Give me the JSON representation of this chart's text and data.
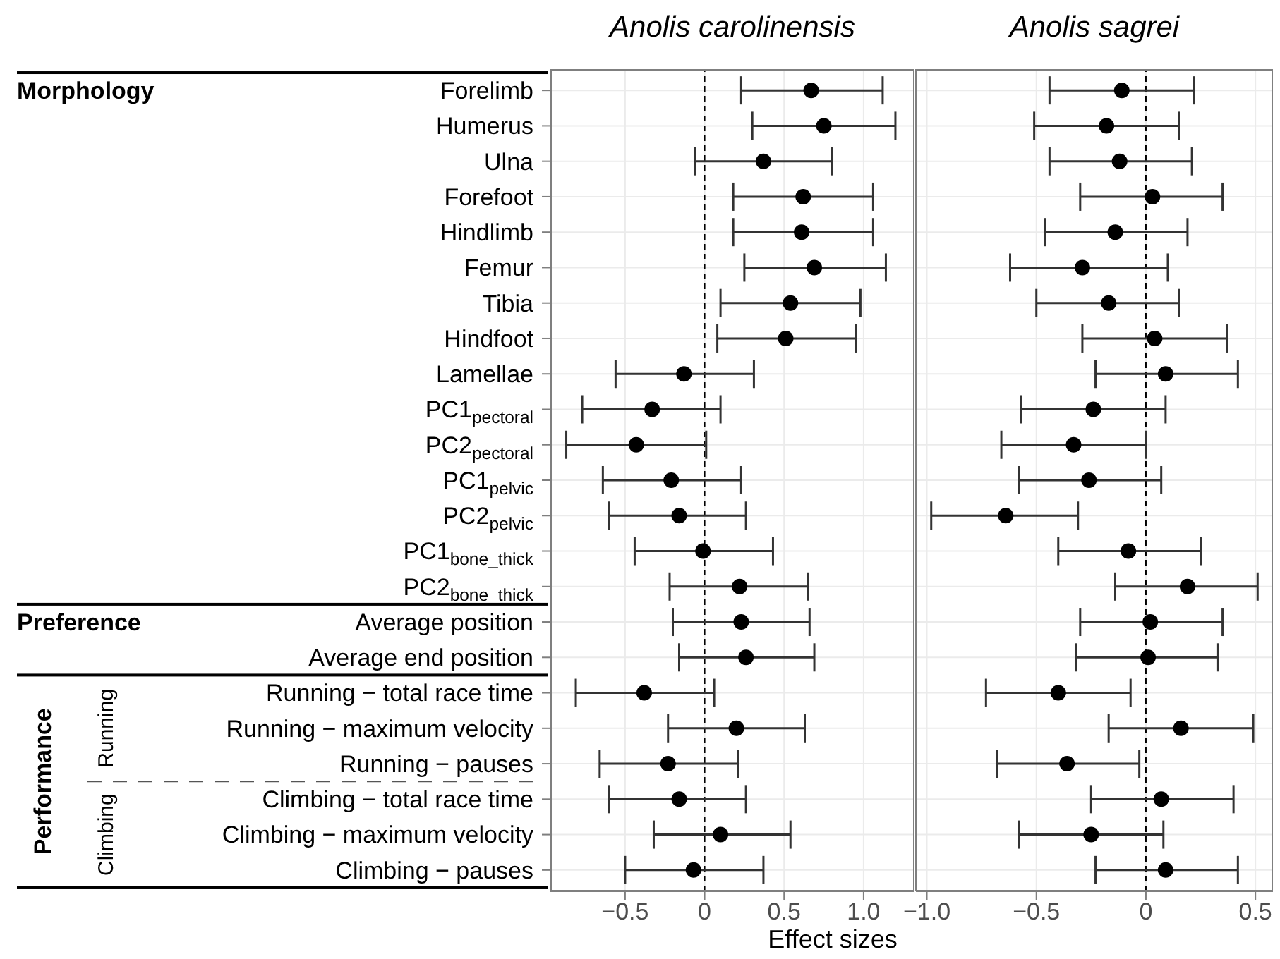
{
  "chart_data": [
    {
      "type": "scatter",
      "orientation": "horizontal",
      "title": "Anolis carolinensis",
      "xlabel": "Effect sizes",
      "categories": [
        "Forelimb",
        "Humerus",
        "Ulna",
        "Forefoot",
        "Hindlimb",
        "Femur",
        "Tibia",
        "Hindfoot",
        "Lamellae",
        "PC1$_{pectoral}$",
        "PC2$_{pectoral}$",
        "PC1$_{pelvic}$",
        "PC2$_{pelvic}$",
        "PC1$_{bone_thick}$",
        "PC2$_{bone_thick}$",
        "Average position",
        "Average end position",
        "Running − total race time",
        "Running − maximum velocity",
        "Running − pauses",
        "Climbing − total race time",
        "Climbing − maximum velocity",
        "Climbing − pauses"
      ],
      "values": [
        0.67,
        0.75,
        0.37,
        0.62,
        0.61,
        0.69,
        0.54,
        0.51,
        -0.13,
        -0.33,
        -0.43,
        -0.21,
        -0.16,
        -0.01,
        0.22,
        0.23,
        0.26,
        -0.38,
        0.2,
        -0.23,
        -0.16,
        0.1,
        -0.07
      ],
      "errors": [
        [
          0.23,
          1.12
        ],
        [
          0.3,
          1.2
        ],
        [
          -0.06,
          0.8
        ],
        [
          0.18,
          1.06
        ],
        [
          0.18,
          1.06
        ],
        [
          0.25,
          1.14
        ],
        [
          0.1,
          0.98
        ],
        [
          0.08,
          0.95
        ],
        [
          -0.56,
          0.31
        ],
        [
          -0.77,
          0.1
        ],
        [
          -0.87,
          0.01
        ],
        [
          -0.64,
          0.23
        ],
        [
          -0.6,
          0.26
        ],
        [
          -0.44,
          0.43
        ],
        [
          -0.22,
          0.65
        ],
        [
          -0.2,
          0.66
        ],
        [
          -0.16,
          0.69
        ],
        [
          -0.81,
          0.06
        ],
        [
          -0.23,
          0.63
        ],
        [
          -0.66,
          0.21
        ],
        [
          -0.6,
          0.26
        ],
        [
          -0.32,
          0.54
        ],
        [
          -0.5,
          0.37
        ]
      ],
      "color": "#000000",
      "marker": "circle",
      "grid": true,
      "xlim": [
        -0.97,
        1.32
      ],
      "xticks": [
        {
          "value": -0.5,
          "label": "−0.5"
        },
        {
          "value": 0,
          "label": "0"
        },
        {
          "value": 0.5,
          "label": "0.5"
        },
        {
          "value": 1,
          "label": "1.0"
        }
      ],
      "ref_lines": [
        {
          "axis": "x",
          "value": 0,
          "line_style": "dashed"
        }
      ],
      "annotations": [
        "Morphology",
        "Preference",
        "Performance",
        "Running",
        "Climbing"
      ]
    },
    {
      "type": "scatter",
      "orientation": "horizontal",
      "title": "Anolis sagrei",
      "tick_labels": "x",
      "categories": [
        null,
        null,
        null,
        null,
        null,
        null,
        null,
        null,
        null,
        null,
        null,
        null,
        null,
        null,
        null,
        null,
        null,
        null,
        null,
        null,
        null,
        null,
        null
      ],
      "values": [
        -0.11,
        -0.18,
        -0.12,
        0.03,
        -0.14,
        -0.29,
        -0.17,
        0.04,
        0.09,
        -0.24,
        -0.33,
        -0.26,
        -0.64,
        -0.08,
        0.19,
        0.02,
        0.01,
        -0.4,
        0.16,
        -0.36,
        0.07,
        -0.25,
        0.09
      ],
      "errors": [
        [
          -0.44,
          0.22
        ],
        [
          -0.51,
          0.15
        ],
        [
          -0.44,
          0.21
        ],
        [
          -0.3,
          0.35
        ],
        [
          -0.46,
          0.19
        ],
        [
          -0.62,
          0.1
        ],
        [
          -0.5,
          0.15
        ],
        [
          -0.29,
          0.37
        ],
        [
          -0.23,
          0.42
        ],
        [
          -0.57,
          0.09
        ],
        [
          -0.66,
          0.0
        ],
        [
          -0.58,
          0.07
        ],
        [
          -0.98,
          -0.31
        ],
        [
          -0.4,
          0.25
        ],
        [
          -0.14,
          0.51
        ],
        [
          -0.3,
          0.35
        ],
        [
          -0.32,
          0.33
        ],
        [
          -0.73,
          -0.07
        ],
        [
          -0.17,
          0.49
        ],
        [
          -0.68,
          -0.03
        ],
        [
          -0.25,
          0.4
        ],
        [
          -0.58,
          0.08
        ],
        [
          -0.23,
          0.42
        ]
      ],
      "color": "#000000",
      "marker": "circle",
      "grid": true,
      "xlim": [
        -1.05,
        0.58
      ],
      "xticks": [
        {
          "value": -1,
          "label": "−1.0"
        },
        {
          "value": -0.5,
          "label": "−0.5"
        },
        {
          "value": 0,
          "label": "0"
        },
        {
          "value": 0.5,
          "label": "0.5"
        }
      ],
      "ref_lines": [
        {
          "axis": "x",
          "value": 0,
          "line_style": "dashed"
        }
      ]
    }
  ]
}
